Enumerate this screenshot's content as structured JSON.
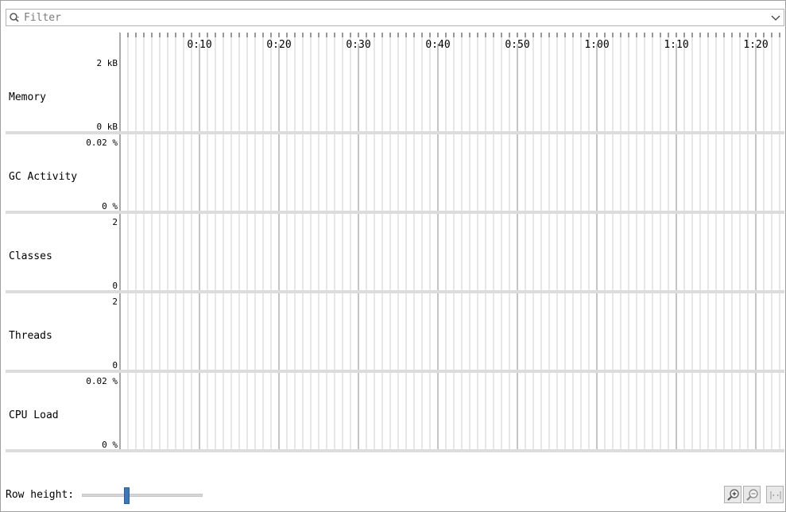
{
  "filter": {
    "placeholder": "Filter",
    "value": ""
  },
  "timeline": {
    "ticks": [
      "0:10",
      "0:20",
      "0:30",
      "0:40",
      "0:50",
      "1:00",
      "1:10",
      "1:20"
    ],
    "minor_ticks_per_major": 10,
    "grid": true
  },
  "tracks": [
    {
      "label": "Memory",
      "max": "2 kB",
      "min": "0 kB"
    },
    {
      "label": "GC Activity",
      "max": "0.02 %",
      "min": "0 %"
    },
    {
      "label": "Classes",
      "max": "2",
      "min": "0"
    },
    {
      "label": "Threads",
      "max": "2",
      "min": "0"
    },
    {
      "label": "CPU Load",
      "max": "0.02 %",
      "min": "0 %"
    }
  ],
  "row_height": {
    "label": "Row height:",
    "value": 0.36
  },
  "toolbar": {
    "zoom_in_icon": "zoom-in-icon",
    "zoom_out_icon": "zoom-out-icon",
    "fit_icon": "fit-all-icon"
  },
  "colors": {
    "slider_thumb": "#3c78b4",
    "separator": "#dcdcdc",
    "grid": "#cfcfcf",
    "major_grid": "#8a8a8a"
  }
}
